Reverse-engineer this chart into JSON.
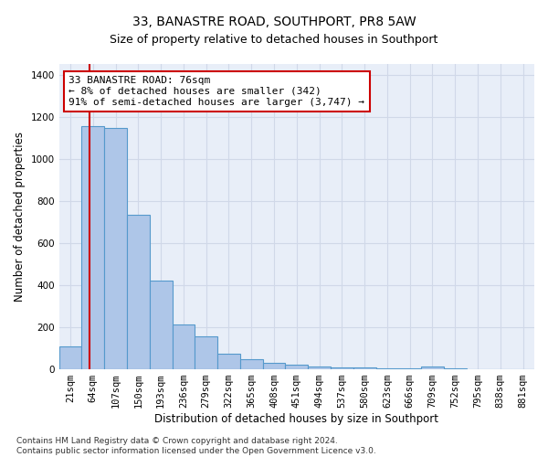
{
  "title": "33, BANASTRE ROAD, SOUTHPORT, PR8 5AW",
  "subtitle": "Size of property relative to detached houses in Southport",
  "xlabel": "Distribution of detached houses by size in Southport",
  "ylabel": "Number of detached properties",
  "bar_labels": [
    "21sqm",
    "64sqm",
    "107sqm",
    "150sqm",
    "193sqm",
    "236sqm",
    "279sqm",
    "322sqm",
    "365sqm",
    "408sqm",
    "451sqm",
    "494sqm",
    "537sqm",
    "580sqm",
    "623sqm",
    "666sqm",
    "709sqm",
    "752sqm",
    "795sqm",
    "838sqm",
    "881sqm"
  ],
  "bar_heights": [
    110,
    1155,
    1145,
    735,
    420,
    215,
    155,
    75,
    50,
    32,
    20,
    15,
    10,
    10,
    5,
    5,
    15,
    5,
    0,
    0,
    0
  ],
  "bar_color": "#aec6e8",
  "bar_edge_color": "#5599cc",
  "annotation_text": "33 BANASTRE ROAD: 76sqm\n← 8% of detached houses are smaller (342)\n91% of semi-detached houses are larger (3,747) →",
  "annotation_box_color": "#ffffff",
  "annotation_border_color": "#cc0000",
  "vline_color": "#cc0000",
  "ylim": [
    0,
    1450
  ],
  "yticks": [
    0,
    200,
    400,
    600,
    800,
    1000,
    1200,
    1400
  ],
  "grid_color": "#d0d8e8",
  "bg_color": "#e8eef8",
  "footer": "Contains HM Land Registry data © Crown copyright and database right 2024.\nContains public sector information licensed under the Open Government Licence v3.0.",
  "title_fontsize": 10,
  "subtitle_fontsize": 9,
  "axis_label_fontsize": 8.5,
  "tick_fontsize": 7.5,
  "annotation_fontsize": 8,
  "footer_fontsize": 6.5
}
